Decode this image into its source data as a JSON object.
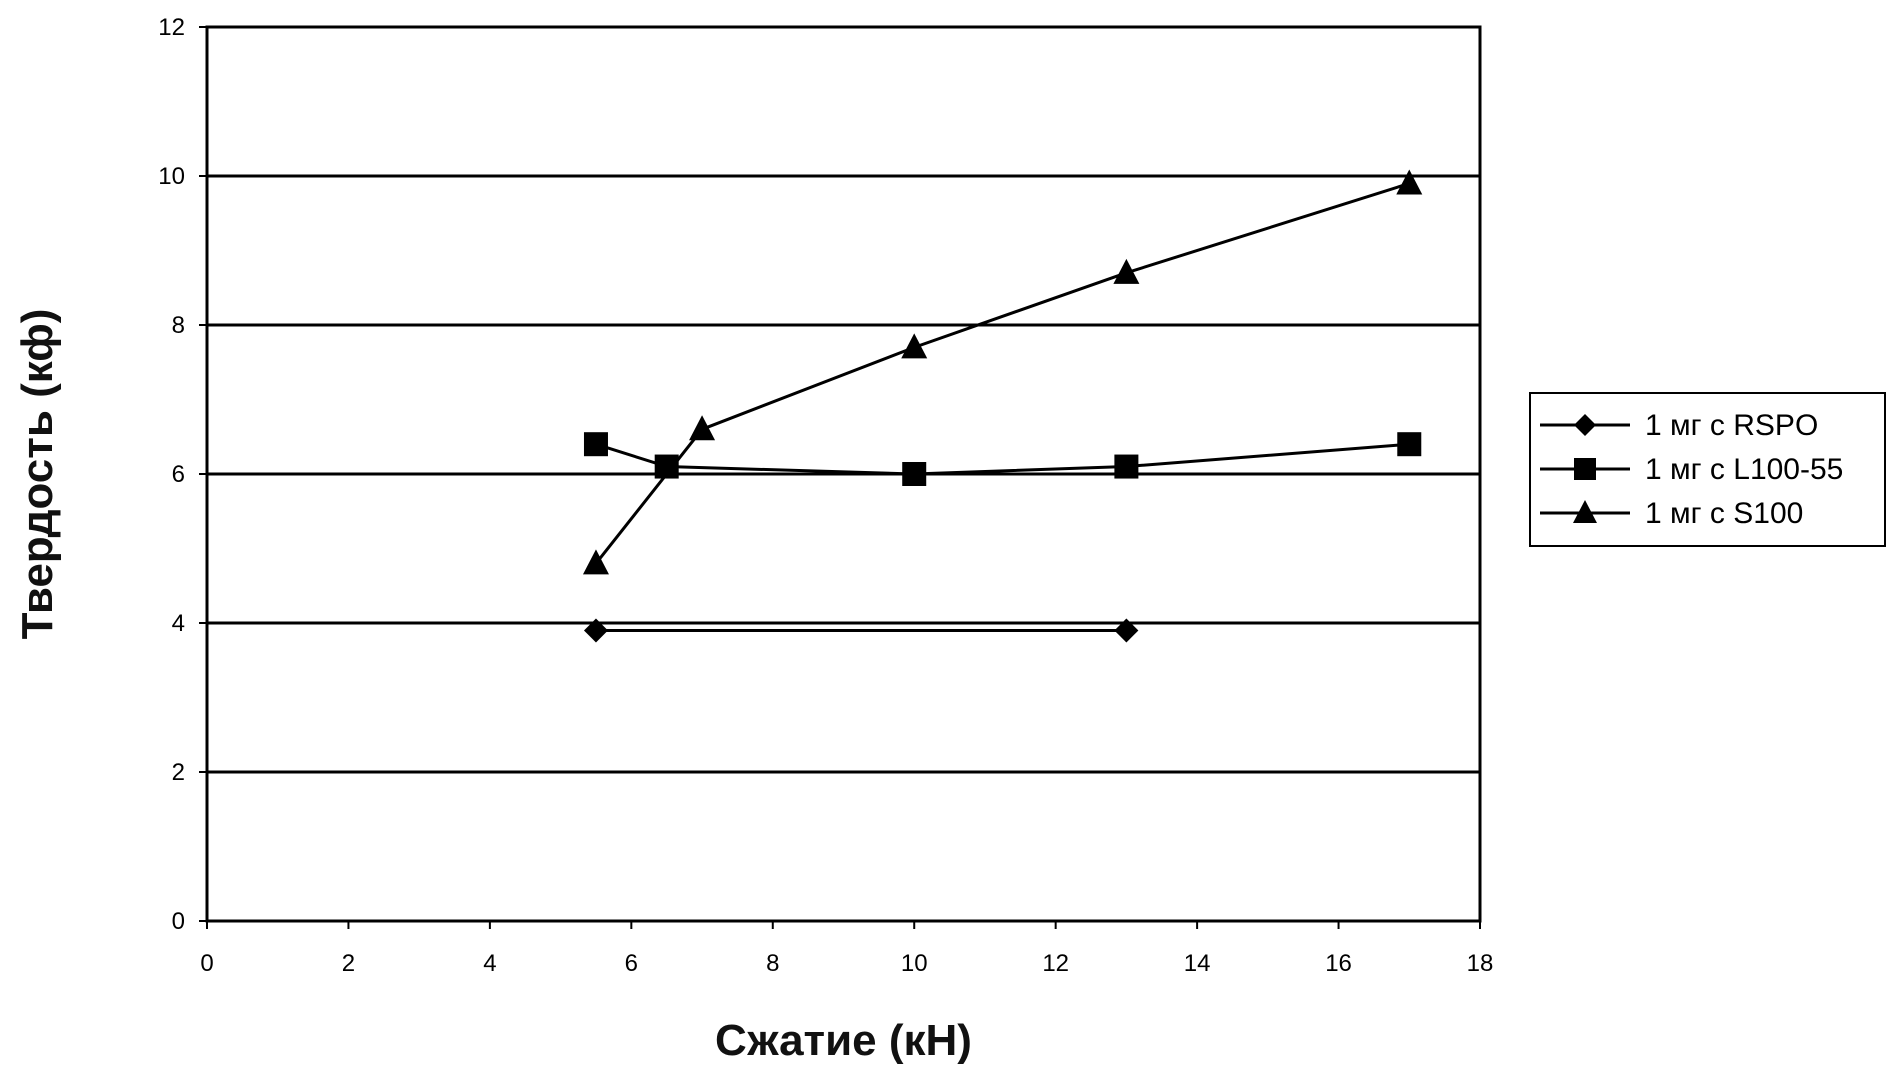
{
  "chart_data": {
    "type": "line",
    "xlabel": "Сжатие (кН)",
    "ylabel": "Твердость (кф)",
    "xlim": [
      0,
      18
    ],
    "ylim": [
      0,
      12
    ],
    "xticks": [
      0,
      2,
      4,
      6,
      8,
      10,
      12,
      14,
      16,
      18
    ],
    "yticks": [
      0,
      2,
      4,
      6,
      8,
      10,
      12
    ],
    "grid": "horizontal",
    "legend_position": "right",
    "series": [
      {
        "name": "1 мг с RSPO",
        "marker": "diamond",
        "x": [
          5.5,
          13
        ],
        "y": [
          3.9,
          3.9
        ]
      },
      {
        "name": "1 мг с L100-55",
        "marker": "square",
        "x": [
          5.5,
          6.5,
          10,
          13,
          17
        ],
        "y": [
          6.4,
          6.1,
          6.0,
          6.1,
          6.4
        ]
      },
      {
        "name": "1 мг с S100",
        "marker": "triangle",
        "x": [
          5.5,
          7,
          10,
          13,
          17
        ],
        "y": [
          4.8,
          6.6,
          7.7,
          8.7,
          9.9
        ]
      }
    ]
  }
}
